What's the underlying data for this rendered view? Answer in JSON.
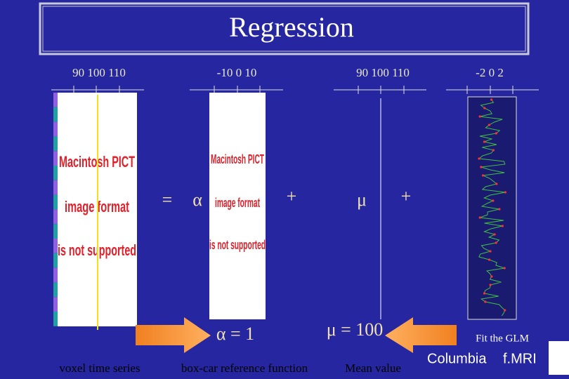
{
  "slide": {
    "title": "Regression",
    "axes": [
      "90 100 110",
      "-10 0 10",
      "90 100 110",
      "-2 0 2"
    ],
    "equation": {
      "equals": "=",
      "alpha": "α",
      "plus1": "+",
      "mu": "μ",
      "plus2": "+"
    },
    "placeholder": [
      "Macintosh PICT",
      "image format",
      "is not supported"
    ],
    "alpha_value": "α = 1",
    "mu_value": "μ = 100",
    "fit": "Fit the GLM",
    "captions": [
      "voxel time series",
      "box-car reference function",
      "Mean value"
    ],
    "footer": [
      "Columbia",
      "f.MRI"
    ]
  }
}
